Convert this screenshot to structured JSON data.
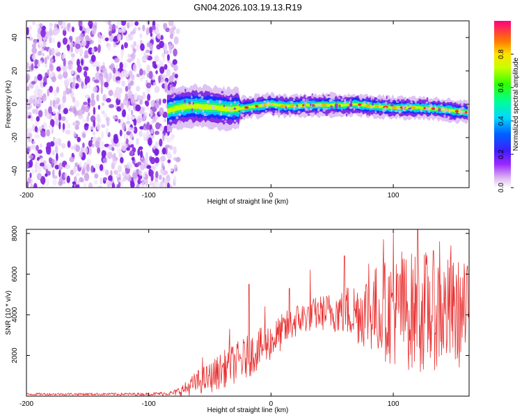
{
  "figure_title": "GN04.2026.103.19.13.R19",
  "chart_data": [
    {
      "type": "heatmap",
      "title": "GN04.2026.103.19.13.R19",
      "xlabel": "Height of straight line (km)",
      "ylabel": "Frequency (Hz)",
      "xlim": [
        -200,
        162
      ],
      "ylim": [
        -50,
        50
      ],
      "xticks": [
        -200,
        -100,
        0,
        100
      ],
      "yticks": [
        -40,
        -20,
        0,
        20,
        40
      ],
      "noise_region_x": [
        -200,
        -80
      ],
      "signal_start_x": -85,
      "ridge": {
        "x": [
          -85,
          -75,
          -65,
          -55,
          -45,
          -35,
          -25,
          -15,
          -5,
          0,
          10,
          20,
          30,
          40,
          50,
          60,
          70,
          80,
          90,
          100,
          110,
          120,
          130,
          140,
          150,
          162
        ],
        "frequency": [
          -4,
          -2,
          -1,
          -1.5,
          -2,
          -3,
          -2.5,
          -1.5,
          -0.5,
          0,
          -1,
          -1,
          -0.5,
          -0.5,
          -0.5,
          -0.5,
          0,
          -1,
          -1.5,
          -2,
          -2,
          -2,
          -2.5,
          -3,
          -4,
          -5
        ]
      },
      "colorbar": {
        "label": "Normalized spectral amplitude",
        "range": [
          0,
          1
        ],
        "ticks": [
          0.0,
          0.2,
          0.4,
          0.6,
          0.8
        ]
      }
    },
    {
      "type": "line",
      "xlabel": "Height of straight line (km)",
      "ylabel": "SNR (10 * v/v)",
      "xlim": [
        -200,
        162
      ],
      "ylim": [
        0,
        8200
      ],
      "xticks": [
        -200,
        -100,
        0,
        100
      ],
      "yticks": [
        2000,
        4000,
        6000,
        8000
      ],
      "series": [
        {
          "name": "SNR",
          "color": "#e83030",
          "envelope": {
            "x": [
              -200,
              -150,
              -100,
              -80,
              -70,
              -60,
              -50,
              -40,
              -30,
              -20,
              -10,
              0,
              10,
              20,
              30,
              40,
              50,
              60,
              70,
              80,
              90,
              100,
              110,
              120,
              130,
              140,
              150,
              162
            ],
            "baseline": [
              100,
              100,
              100,
              150,
              350,
              700,
              900,
              1300,
              1600,
              1900,
              2300,
              2700,
              3200,
              3700,
              3950,
              4100,
              4150,
              4200,
              4150,
              4250,
              4200,
              4150,
              4200,
              4100,
              4250,
              4150,
              4050,
              4000
            ],
            "spread": [
              60,
              60,
              70,
              120,
              350,
              600,
              750,
              900,
              1000,
              1050,
              1000,
              950,
              900,
              850,
              800,
              850,
              1000,
              1250,
              1600,
              2000,
              2400,
              2700,
              2900,
              3000,
              3000,
              2800,
              2700,
              2600
            ]
          },
          "peaks": [
            [
              -56,
              1900
            ],
            [
              -34,
              3300
            ],
            [
              -18,
              5500
            ],
            [
              -5,
              4400
            ],
            [
              15,
              5300
            ],
            [
              32,
              6200
            ],
            [
              60,
              6900
            ],
            [
              80,
              6500
            ],
            [
              92,
              7700
            ],
            [
              100,
              8100
            ],
            [
              107,
              7100
            ],
            [
              120,
              8200
            ],
            [
              138,
              7600
            ],
            [
              147,
              7400
            ],
            [
              160,
              6000
            ]
          ]
        }
      ]
    }
  ]
}
